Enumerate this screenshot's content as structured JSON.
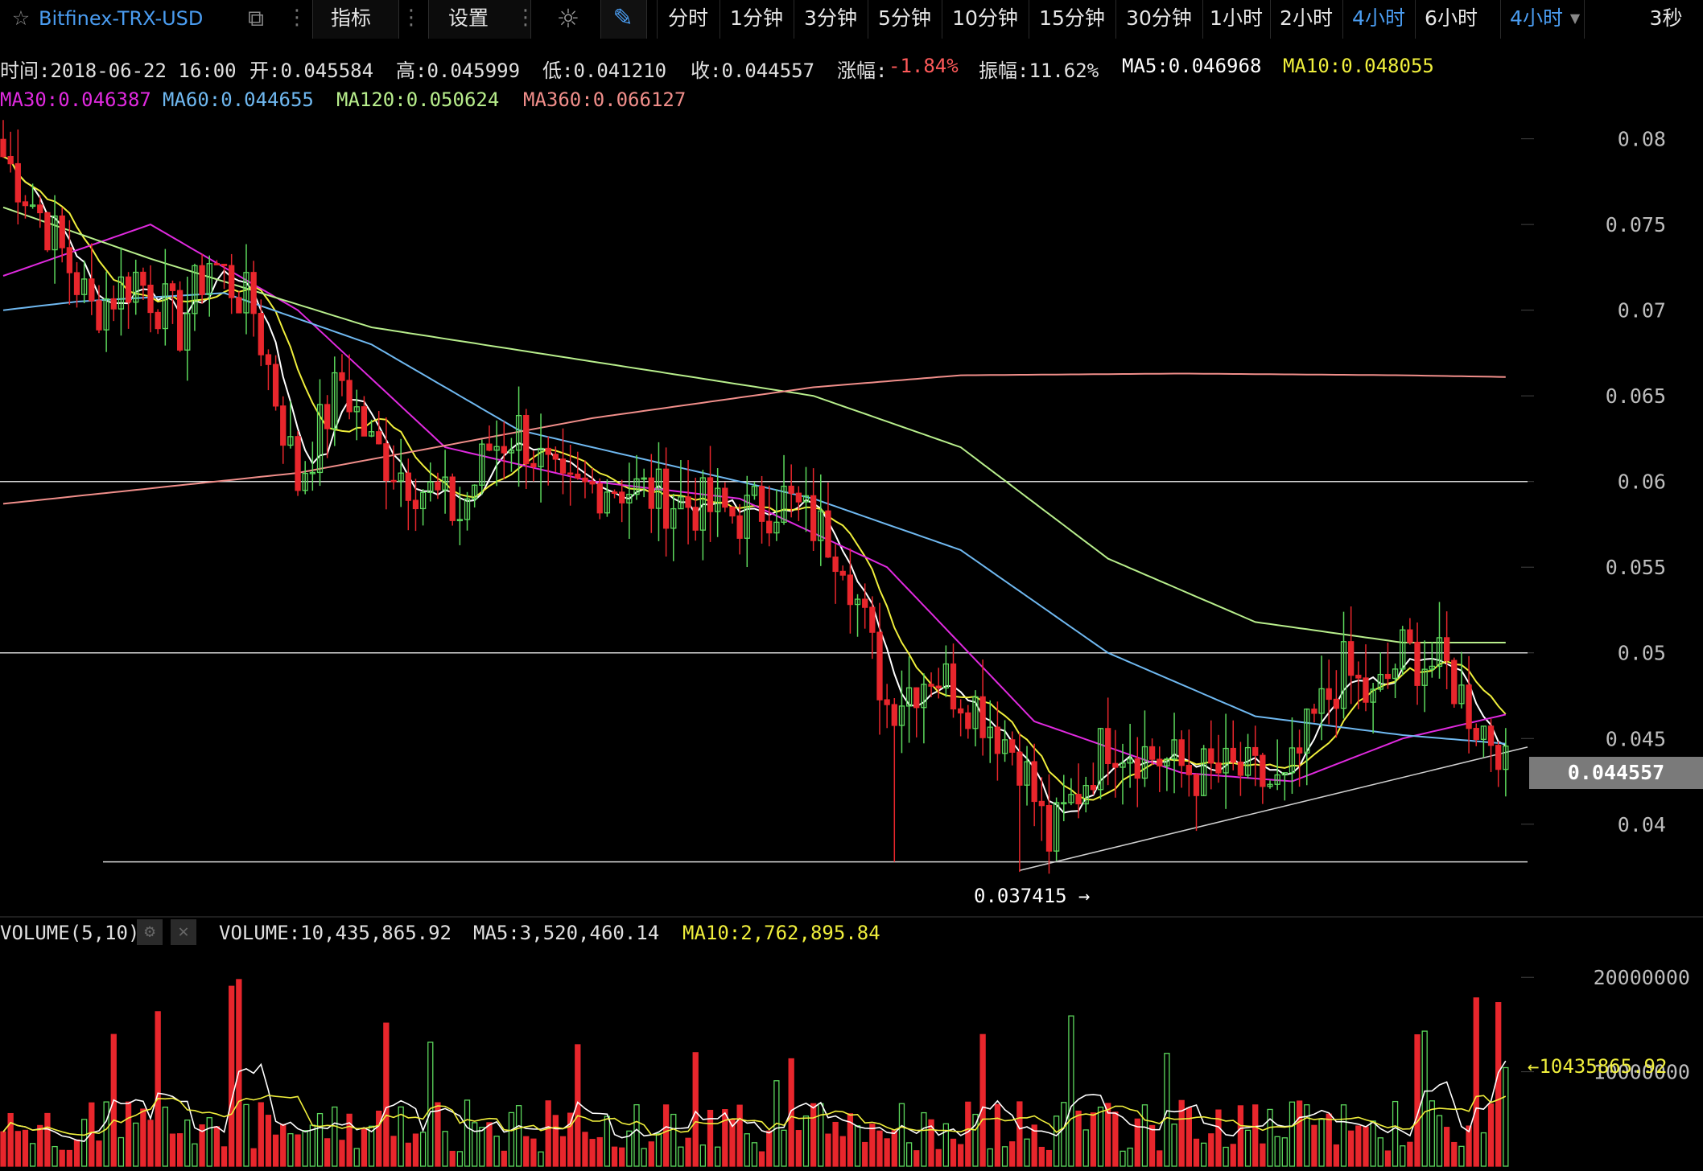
{
  "toolbar": {
    "symbol": "Bitfinex-TRX-USD",
    "indicator_label": "指标",
    "settings_label": "设置",
    "timeframes": [
      "分时",
      "1分钟",
      "3分钟",
      "5分钟",
      "10分钟",
      "15分钟",
      "30分钟",
      "1小时",
      "2小时",
      "4小时",
      "6小时"
    ],
    "active_timeframe": "4小时",
    "dropdown_value": "4小时",
    "refresh_label": "3秒"
  },
  "info_bar": {
    "time": "时间:2018-06-22 16:00",
    "open": "开:0.045584",
    "high": "高:0.045999",
    "low": "低:0.041210",
    "close": "收:0.044557",
    "change_label": "涨幅:",
    "change_value": "-1.84%",
    "amplitude": "振幅:11.62%",
    "ma5": "MA5:0.046968",
    "ma10": "MA10:0.048055",
    "ma30": "MA30:0.046387",
    "ma60": "MA60:0.044655",
    "ma120": "MA120:0.050624",
    "ma360": "MA360:0.066127"
  },
  "volume_bar": {
    "label": "VOLUME(5,10)",
    "volume": "VOLUME:10,435,865.92",
    "ma5": "MA5:3,520,460.14",
    "ma10": "MA10:2,762,895.84"
  },
  "annotations": {
    "last_price": "0.044557",
    "low_marker": "0.037415 →",
    "volume_marker": "←10435865.92"
  },
  "colors": {
    "up": "#5cd85c",
    "down": "#e8262c",
    "ma5": "#ffffff",
    "ma10": "#f0ef3c",
    "ma30": "#e02adf",
    "ma60": "#6fb8f0",
    "ma120": "#b8ee8c",
    "ma360": "#f08e8a",
    "accent": "#4a9cf0"
  },
  "chart_data": {
    "type": "candlestick",
    "price_axis": {
      "ticks": [
        "0.08",
        "0.075",
        "0.07",
        "0.065",
        "0.06",
        "0.055",
        "0.05",
        "0.045",
        "0.04"
      ],
      "min": 0.036,
      "max": 0.082
    },
    "volume_axis": {
      "ticks": [
        "20000000",
        "10000000"
      ]
    },
    "horizontal_lines": [
      0.06,
      0.05,
      0.0378
    ],
    "trendline": {
      "from": 0.0373,
      "to": 0.0445
    },
    "last_price": 0.044557,
    "series_low": 0.037415,
    "last_volume": 10435865.92,
    "anchors_close": [
      [
        0,
        0.079
      ],
      [
        6,
        0.075
      ],
      [
        12,
        0.07
      ],
      [
        18,
        0.072
      ],
      [
        24,
        0.069
      ],
      [
        28,
        0.073
      ],
      [
        34,
        0.07
      ],
      [
        40,
        0.06
      ],
      [
        46,
        0.066
      ],
      [
        50,
        0.062
      ],
      [
        56,
        0.06
      ],
      [
        62,
        0.058
      ],
      [
        66,
        0.062
      ],
      [
        70,
        0.063
      ],
      [
        76,
        0.059
      ],
      [
        82,
        0.06
      ],
      [
        90,
        0.059
      ],
      [
        100,
        0.058
      ],
      [
        106,
        0.059
      ],
      [
        114,
        0.056
      ],
      [
        120,
        0.047
      ],
      [
        126,
        0.049
      ],
      [
        132,
        0.047
      ],
      [
        138,
        0.044
      ],
      [
        142,
        0.039
      ],
      [
        146,
        0.042
      ],
      [
        150,
        0.045
      ],
      [
        156,
        0.044
      ],
      [
        162,
        0.043
      ],
      [
        168,
        0.043
      ],
      [
        174,
        0.042
      ],
      [
        178,
        0.046
      ],
      [
        182,
        0.049
      ],
      [
        186,
        0.047
      ],
      [
        190,
        0.05
      ],
      [
        196,
        0.049
      ],
      [
        200,
        0.046
      ],
      [
        204,
        0.0445
      ]
    ],
    "ma_curves": {
      "MA30": [
        [
          0,
          0.072
        ],
        [
          20,
          0.075
        ],
        [
          40,
          0.07
        ],
        [
          60,
          0.062
        ],
        [
          80,
          0.06
        ],
        [
          100,
          0.059
        ],
        [
          120,
          0.055
        ],
        [
          140,
          0.046
        ],
        [
          160,
          0.043
        ],
        [
          175,
          0.0425
        ],
        [
          190,
          0.045
        ],
        [
          204,
          0.0464
        ]
      ],
      "MA60": [
        [
          0,
          0.07
        ],
        [
          10,
          0.0705
        ],
        [
          30,
          0.071
        ],
        [
          50,
          0.068
        ],
        [
          70,
          0.063
        ],
        [
          90,
          0.061
        ],
        [
          110,
          0.059
        ],
        [
          130,
          0.056
        ],
        [
          150,
          0.05
        ],
        [
          170,
          0.0463
        ],
        [
          190,
          0.0452
        ],
        [
          204,
          0.0447
        ]
      ],
      "MA120": [
        [
          0,
          0.076
        ],
        [
          20,
          0.073
        ],
        [
          50,
          0.069
        ],
        [
          80,
          0.067
        ],
        [
          110,
          0.065
        ],
        [
          130,
          0.062
        ],
        [
          150,
          0.0555
        ],
        [
          170,
          0.0518
        ],
        [
          190,
          0.0506
        ],
        [
          204,
          0.0506
        ]
      ],
      "MA360": [
        [
          0,
          0.0587
        ],
        [
          40,
          0.0605
        ],
        [
          80,
          0.0637
        ],
        [
          110,
          0.0655
        ],
        [
          130,
          0.0662
        ],
        [
          160,
          0.0663
        ],
        [
          190,
          0.0662
        ],
        [
          204,
          0.0661
        ]
      ]
    }
  }
}
